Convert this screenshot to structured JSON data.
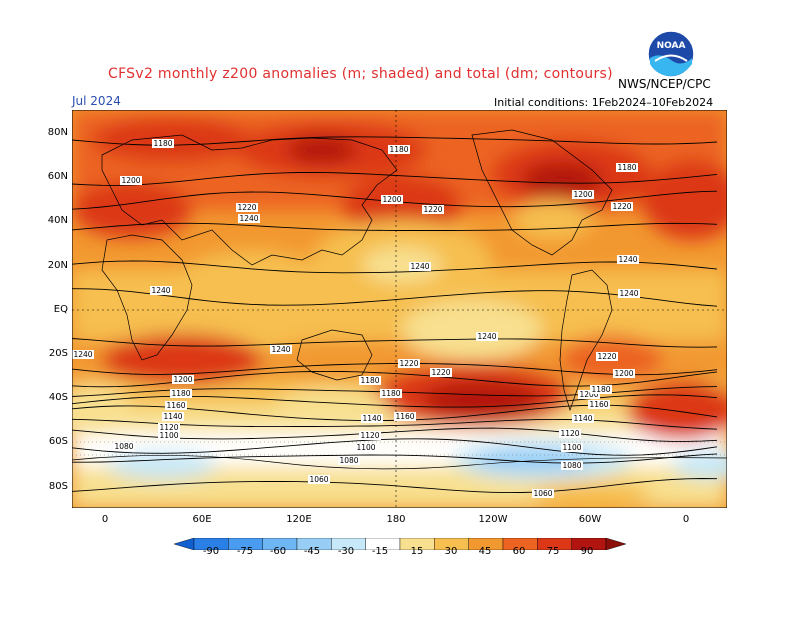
{
  "header": {
    "title": "CFSv2 monthly z200 anomalies (m; shaded) and total (dm; contours)",
    "month": "Jul 2024",
    "initial_conditions": "Initial conditions: 1Feb2024–10Feb2024",
    "agency": "NWS/NCEP/CPC",
    "logo_text": "NOAA"
  },
  "axes": {
    "lat_labels": [
      "80N",
      "60N",
      "40N",
      "20N",
      "EQ",
      "20S",
      "40S",
      "60S",
      "80S"
    ],
    "lon_labels": [
      "0",
      "60E",
      "120E",
      "180",
      "120W",
      "60W",
      "0"
    ]
  },
  "legend": {
    "tick_labels": [
      "-90",
      "-75",
      "-60",
      "-45",
      "-30",
      "-15",
      "15",
      "30",
      "45",
      "60",
      "75",
      "90"
    ],
    "colors": [
      "#1060d0",
      "#2b80e8",
      "#4a9cf0",
      "#6fb6f4",
      "#98cef6",
      "#c6e8f8",
      "#ffffff",
      "#f8e090",
      "#f6bf50",
      "#f29830",
      "#ec6420",
      "#dc3818",
      "#b21410",
      "#8a0e0a"
    ]
  },
  "contour_labels": [
    {
      "text": "1180"
    },
    {
      "text": "1180"
    },
    {
      "text": "1180"
    },
    {
      "text": "1200"
    },
    {
      "text": "1200"
    },
    {
      "text": "1200"
    },
    {
      "text": "1220"
    },
    {
      "text": "1220"
    },
    {
      "text": "1220"
    },
    {
      "text": "1240"
    },
    {
      "text": "1240"
    },
    {
      "text": "1240"
    },
    {
      "text": "1240"
    },
    {
      "text": "1240"
    },
    {
      "text": "1240"
    },
    {
      "text": "1240"
    },
    {
      "text": "1240"
    },
    {
      "text": "1220"
    },
    {
      "text": "1220"
    },
    {
      "text": "1220"
    },
    {
      "text": "1200"
    },
    {
      "text": "1200"
    },
    {
      "text": "1200"
    },
    {
      "text": "1180"
    },
    {
      "text": "1180"
    },
    {
      "text": "1180"
    },
    {
      "text": "1180"
    },
    {
      "text": "1160"
    },
    {
      "text": "1160"
    },
    {
      "text": "1160"
    },
    {
      "text": "1140"
    },
    {
      "text": "1140"
    },
    {
      "text": "1140"
    },
    {
      "text": "1120"
    },
    {
      "text": "1120"
    },
    {
      "text": "1120"
    },
    {
      "text": "1100"
    },
    {
      "text": "1100"
    },
    {
      "text": "1100"
    },
    {
      "text": "1080"
    },
    {
      "text": "1080"
    },
    {
      "text": "1080"
    },
    {
      "text": "1060"
    },
    {
      "text": "1060"
    }
  ]
}
